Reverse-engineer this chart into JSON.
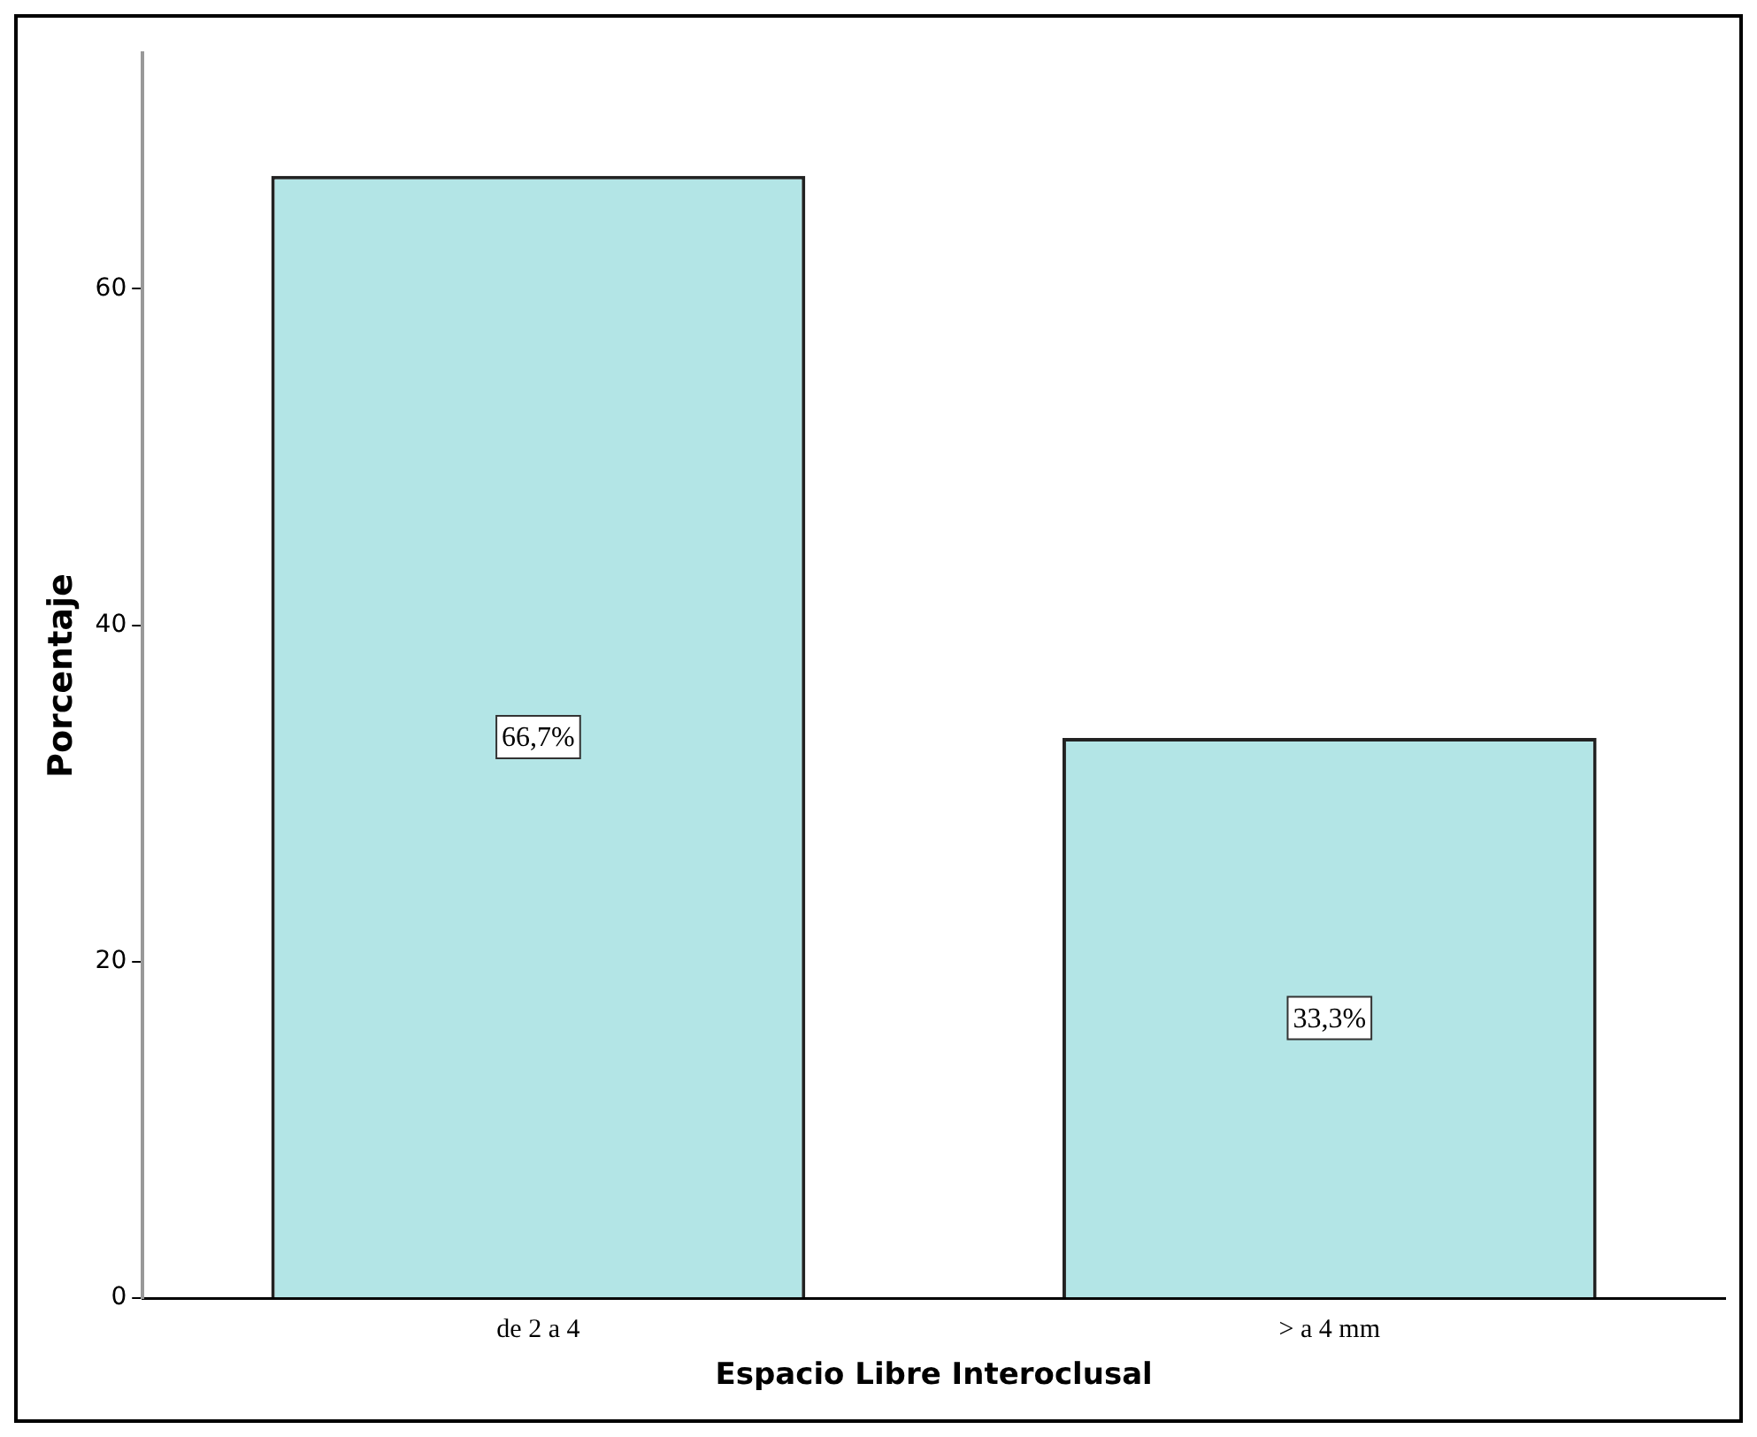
{
  "chart_data": {
    "type": "bar",
    "xlabel": "Espacio Libre Interoclusal",
    "ylabel": "Porcentaje",
    "categories": [
      "de 2 a 4",
      "> a 4 mm"
    ],
    "values": [
      66.7,
      33.3
    ],
    "value_labels": [
      "66,7%",
      "33,3%"
    ],
    "color": "#b3e5e6",
    "ylim": [
      0,
      74
    ],
    "yticks": [
      0,
      20,
      40,
      60
    ],
    "grid": false,
    "legend": false
  }
}
